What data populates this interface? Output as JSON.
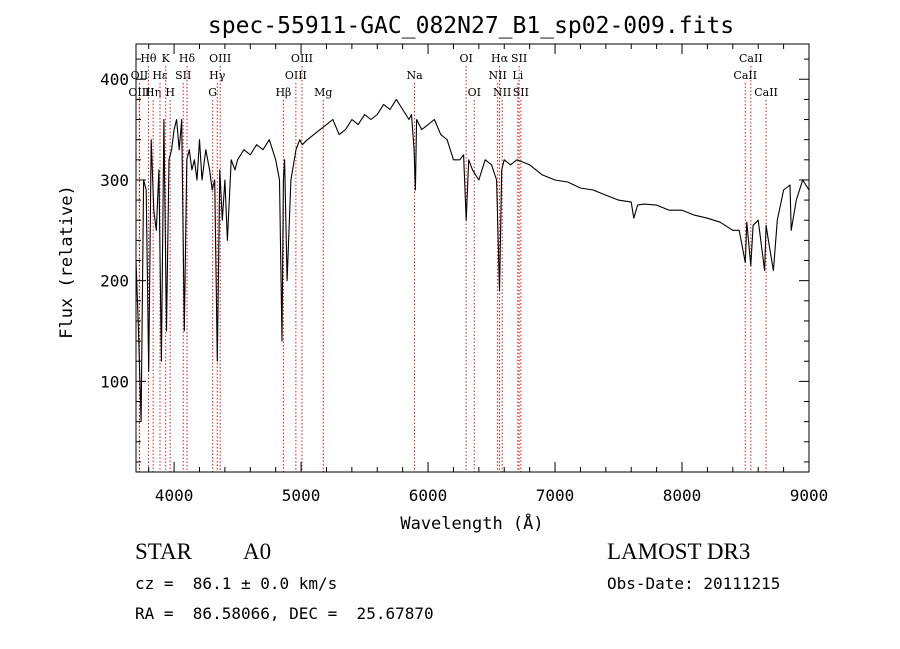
{
  "chart_data": {
    "type": "line",
    "title": "spec-55911-GAC_082N27_B1_sp02-009.fits",
    "xlabel": "Wavelength (Å)",
    "ylabel": "Flux (relative)",
    "xlim": [
      3700,
      9000
    ],
    "ylim": [
      10,
      435
    ],
    "x_ticks": [
      4000,
      5000,
      6000,
      7000,
      8000,
      9000
    ],
    "y_ticks": [
      100,
      200,
      300,
      400
    ],
    "series": [
      {
        "name": "flux",
        "x": [
          3700,
          3720,
          3740,
          3760,
          3780,
          3800,
          3820,
          3840,
          3860,
          3880,
          3900,
          3920,
          3940,
          3960,
          3980,
          4000,
          4020,
          4040,
          4060,
          4080,
          4100,
          4120,
          4140,
          4160,
          4180,
          4200,
          4220,
          4250,
          4280,
          4300,
          4320,
          4340,
          4360,
          4380,
          4400,
          4420,
          4450,
          4480,
          4500,
          4550,
          4600,
          4650,
          4700,
          4750,
          4800,
          4830,
          4850,
          4861,
          4870,
          4890,
          4920,
          4960,
          4990,
          5010,
          5050,
          5100,
          5150,
          5200,
          5250,
          5300,
          5350,
          5400,
          5450,
          5500,
          5550,
          5600,
          5650,
          5700,
          5750,
          5800,
          5850,
          5870,
          5890,
          5900,
          5910,
          5950,
          6000,
          6050,
          6100,
          6150,
          6200,
          6250,
          6280,
          6300,
          6320,
          6350,
          6400,
          6450,
          6500,
          6540,
          6563,
          6580,
          6600,
          6650,
          6700,
          6800,
          6900,
          7000,
          7100,
          7200,
          7300,
          7400,
          7500,
          7600,
          7620,
          7650,
          7700,
          7800,
          7900,
          8000,
          8100,
          8200,
          8300,
          8400,
          8450,
          8498,
          8510,
          8542,
          8560,
          8600,
          8650,
          8662,
          8680,
          8720,
          8750,
          8800,
          8850,
          8860,
          8900,
          8950,
          9000
        ],
        "values": [
          220,
          150,
          60,
          300,
          290,
          110,
          340,
          270,
          250,
          310,
          120,
          360,
          150,
          320,
          330,
          350,
          360,
          330,
          360,
          150,
          320,
          330,
          310,
          320,
          300,
          340,
          300,
          330,
          310,
          290,
          300,
          120,
          310,
          260,
          300,
          240,
          320,
          310,
          320,
          330,
          325,
          335,
          330,
          340,
          320,
          300,
          140,
          300,
          320,
          200,
          300,
          330,
          340,
          335,
          340,
          345,
          350,
          355,
          360,
          345,
          350,
          360,
          355,
          365,
          360,
          365,
          375,
          370,
          380,
          370,
          360,
          365,
          330,
          290,
          360,
          350,
          355,
          360,
          345,
          340,
          320,
          320,
          325,
          260,
          320,
          310,
          300,
          320,
          315,
          300,
          190,
          310,
          320,
          315,
          320,
          315,
          305,
          300,
          298,
          292,
          290,
          285,
          280,
          278,
          262,
          275,
          276,
          275,
          270,
          270,
          265,
          262,
          258,
          250,
          250,
          218,
          258,
          215,
          255,
          260,
          210,
          255,
          240,
          210,
          260,
          290,
          295,
          250,
          280,
          300,
          290
        ]
      }
    ],
    "line_markers": [
      {
        "label": "Hθ",
        "x": 3798,
        "row": 1
      },
      {
        "label": "OII",
        "x": 3727,
        "row": 2
      },
      {
        "label": "OIII",
        "x": 3727,
        "row": 3
      },
      {
        "label": "Hη",
        "x": 3835,
        "row": 3
      },
      {
        "label": "K",
        "x": 3934,
        "row": 1
      },
      {
        "label": "Hε",
        "x": 3889,
        "row": 2
      },
      {
        "label": "H",
        "x": 3969,
        "row": 3
      },
      {
        "label": "SII",
        "x": 4072,
        "row": 2
      },
      {
        "label": "Hδ",
        "x": 4102,
        "row": 1
      },
      {
        "label": "OIII",
        "x": 4363,
        "row": 1
      },
      {
        "label": "Hγ",
        "x": 4340,
        "row": 2
      },
      {
        "label": "G",
        "x": 4304,
        "row": 3
      },
      {
        "label": "OIII",
        "x": 5007,
        "row": 1
      },
      {
        "label": "OIII",
        "x": 4959,
        "row": 2
      },
      {
        "label": "Hβ",
        "x": 4861,
        "row": 3
      },
      {
        "label": "Mg",
        "x": 5175,
        "row": 3
      },
      {
        "label": "Na",
        "x": 5894,
        "row": 2
      },
      {
        "label": "OI",
        "x": 6300,
        "row": 1
      },
      {
        "label": "OI",
        "x": 6364,
        "row": 3
      },
      {
        "label": "Hα",
        "x": 6563,
        "row": 1
      },
      {
        "label": "SII",
        "x": 6717,
        "row": 1
      },
      {
        "label": "NII",
        "x": 6548,
        "row": 2
      },
      {
        "label": "Li",
        "x": 6707,
        "row": 2
      },
      {
        "label": "NII",
        "x": 6584,
        "row": 3
      },
      {
        "label": "SII",
        "x": 6731,
        "row": 3
      },
      {
        "label": "CaII",
        "x": 8542,
        "row": 1
      },
      {
        "label": "CaII",
        "x": 8498,
        "row": 2
      },
      {
        "label": "CaII",
        "x": 8662,
        "row": 3
      }
    ]
  },
  "info": {
    "class": "STAR",
    "subclass": "A0",
    "survey": "LAMOST DR3",
    "redshift": "cz =  86.1 ± 0.0 km/s",
    "obs_date": "Obs-Date: 20111215",
    "coords": "RA =  86.58066, DEC =  25.67870"
  }
}
